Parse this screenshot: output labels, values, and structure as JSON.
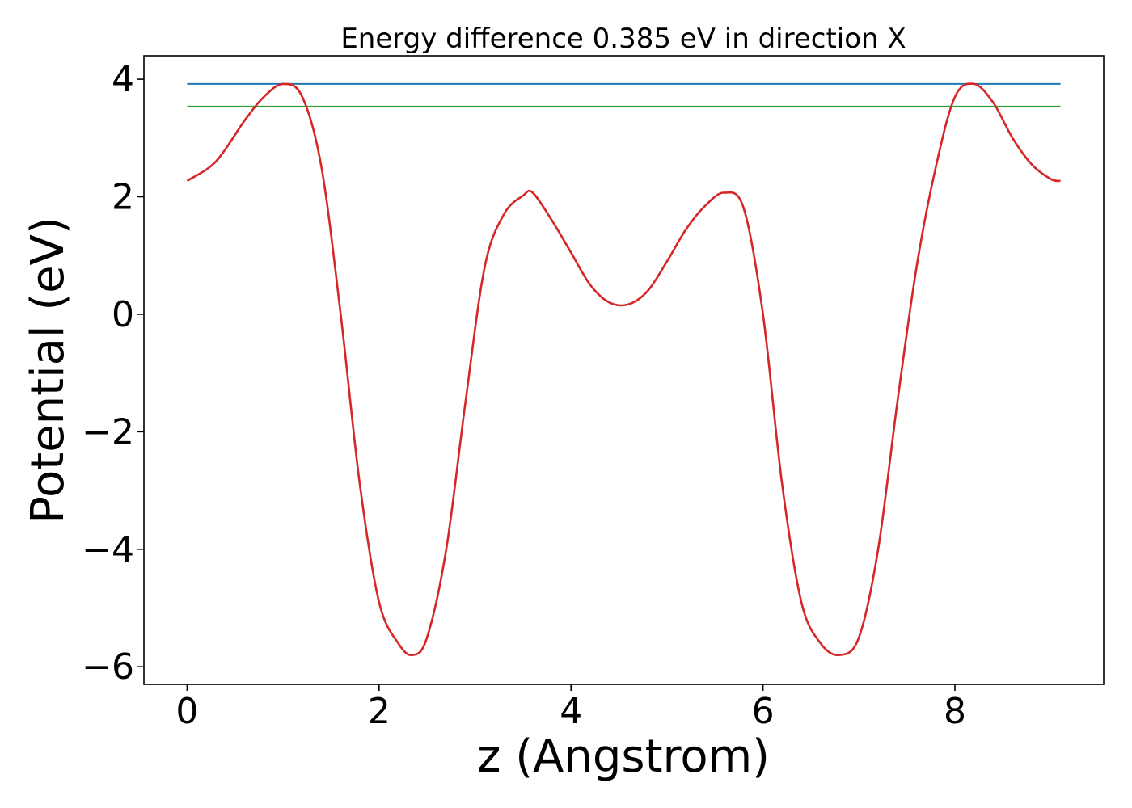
{
  "chart_data": {
    "type": "line",
    "title": "Energy difference 0.385 eV in direction X",
    "xlabel": "z (Angstrom)",
    "ylabel": "Potential (eV)",
    "xlim": [
      -0.45,
      9.55
    ],
    "ylim": [
      -6.3,
      4.4
    ],
    "grid": false,
    "x_ticks": [
      0,
      2,
      4,
      6,
      8
    ],
    "x_tick_labels": [
      "0",
      "2",
      "4",
      "6",
      "8"
    ],
    "y_ticks": [
      -6,
      -4,
      -2,
      0,
      2,
      4
    ],
    "y_tick_labels": [
      "−6",
      "−4",
      "−2",
      "0",
      "2",
      "4"
    ],
    "series": [
      {
        "color": "#d62728",
        "x": [
          0,
          0.3,
          0.6,
          0.8,
          1.0,
          1.2,
          1.4,
          1.6,
          1.8,
          2.0,
          2.2,
          2.35,
          2.5,
          2.7,
          2.9,
          3.1,
          3.3,
          3.5,
          3.6,
          3.8,
          4.0,
          4.2,
          4.4,
          4.6,
          4.8,
          5.0,
          5.2,
          5.4,
          5.6,
          5.8,
          6.0,
          6.2,
          6.4,
          6.6,
          6.8,
          7.0,
          7.2,
          7.4,
          7.6,
          7.8,
          8.0,
          8.2,
          8.4,
          8.6,
          8.8,
          9.0,
          9.1
        ],
        "y": [
          2.27,
          2.6,
          3.3,
          3.7,
          3.92,
          3.7,
          2.5,
          0.0,
          -2.9,
          -4.9,
          -5.6,
          -5.8,
          -5.5,
          -4.0,
          -1.5,
          0.8,
          1.7,
          2.02,
          2.07,
          1.6,
          1.05,
          0.5,
          0.2,
          0.17,
          0.4,
          0.9,
          1.45,
          1.85,
          2.07,
          1.8,
          0.0,
          -2.9,
          -4.9,
          -5.6,
          -5.8,
          -5.5,
          -4.0,
          -1.5,
          0.8,
          2.5,
          3.7,
          3.92,
          3.6,
          3.0,
          2.55,
          2.3,
          2.27
        ]
      },
      {
        "color": "#1f77b4",
        "x": [
          0,
          9.1
        ],
        "y": [
          3.92,
          3.92
        ]
      },
      {
        "color": "#2ca02c",
        "x": [
          0,
          9.1
        ],
        "y": [
          3.535,
          3.535
        ]
      }
    ]
  }
}
